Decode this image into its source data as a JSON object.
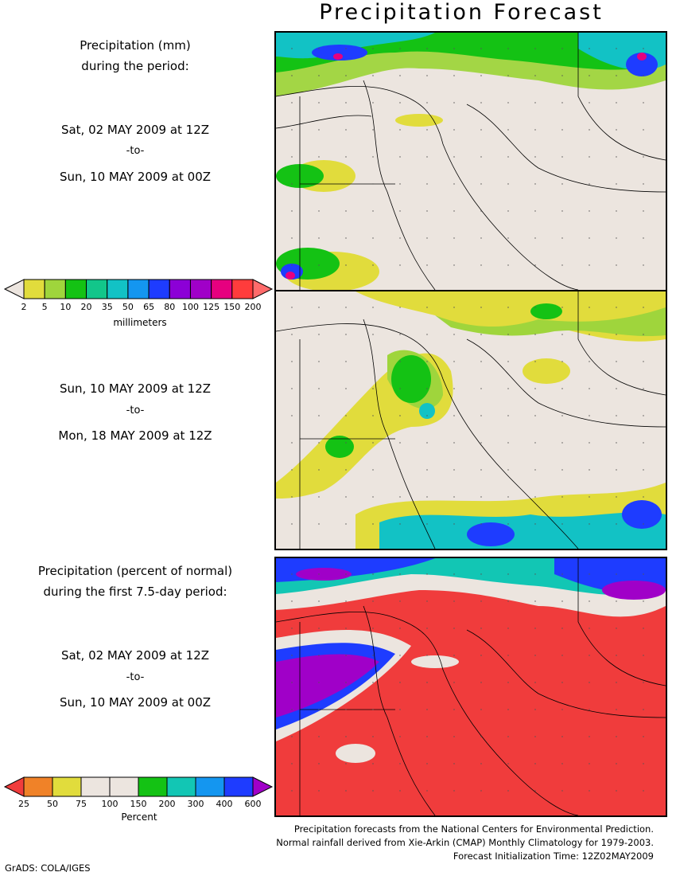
{
  "title": "Precipitation Forecast",
  "panel1": {
    "label_line1": "Precipitation (mm)",
    "label_line2": "during the period:",
    "start": "Sat, 02 MAY 2009 at 12Z",
    "sep": "-to-",
    "end": "Sun, 10 MAY 2009 at 00Z"
  },
  "panel2": {
    "start": "Sun, 10 MAY 2009 at 12Z",
    "sep": "-to-",
    "end": "Mon, 18 MAY 2009 at 12Z"
  },
  "panel3": {
    "label_line1": "Precipitation (percent of normal)",
    "label_line2": "during the first 7.5-day period:",
    "start": "Sat, 02 MAY 2009 at 12Z",
    "sep": "-to-",
    "end": "Sun, 10 MAY 2009 at 00Z"
  },
  "mm_colorbar": {
    "unit": "millimeters",
    "ticks": [
      "2",
      "5",
      "10",
      "20",
      "35",
      "50",
      "65",
      "80",
      "100",
      "125",
      "150",
      "200"
    ],
    "colors": [
      "#ece5df",
      "#e1dc3c",
      "#9fd53c",
      "#14c214",
      "#12c68a",
      "#12c2c5",
      "#1496f0",
      "#1e3cff",
      "#8c00d7",
      "#a000c8",
      "#e6007f",
      "#ff3c3c",
      "#ff6b6b"
    ]
  },
  "pct_colorbar": {
    "unit": "Percent",
    "ticks": [
      "25",
      "50",
      "75",
      "100",
      "150",
      "200",
      "300",
      "400",
      "600"
    ],
    "colors": [
      "#f03c3c",
      "#f08228",
      "#e1dc3c",
      "#ece5df",
      "#ece5df",
      "#14c214",
      "#12c6b4",
      "#1496f0",
      "#1e3cff",
      "#a000c8"
    ]
  },
  "credits": {
    "line1": "Precipitation forecasts from the National Centers for Environmental Prediction.",
    "line2": "Normal rainfall derived from Xie-Arkin (CMAP) Monthly Climatology for 1979-2003.",
    "line3": "Forecast Initialization Time: 12Z02MAY2009"
  },
  "software": "GrADS: COLA/IGES"
}
